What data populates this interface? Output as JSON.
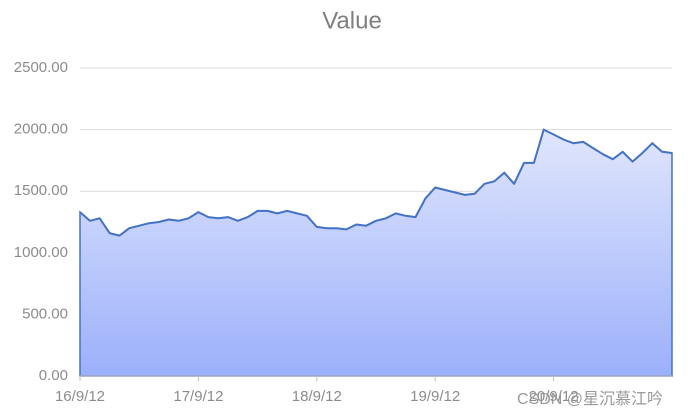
{
  "chart_data": {
    "type": "area",
    "title": "Value",
    "categories": [
      "16/9/12",
      null,
      null,
      null,
      null,
      null,
      null,
      null,
      null,
      null,
      null,
      null,
      "17/9/12",
      null,
      null,
      null,
      null,
      null,
      null,
      null,
      null,
      null,
      null,
      null,
      "18/9/12",
      null,
      null,
      null,
      null,
      null,
      null,
      null,
      null,
      null,
      null,
      null,
      "19/9/12",
      null,
      null,
      null,
      null,
      null,
      null,
      null,
      null,
      null,
      null,
      null,
      "20/9/12",
      null,
      null,
      null,
      null,
      null,
      null,
      null,
      null,
      null,
      null,
      null,
      null
    ],
    "series": [
      {
        "name": "Value",
        "color": "#4472c4",
        "values": [
          1330,
          1260,
          1280,
          1160,
          1140,
          1200,
          1220,
          1240,
          1250,
          1270,
          1260,
          1280,
          1330,
          1290,
          1280,
          1290,
          1260,
          1290,
          1340,
          1340,
          1320,
          1340,
          1320,
          1300,
          1210,
          1200,
          1200,
          1190,
          1230,
          1220,
          1260,
          1280,
          1320,
          1300,
          1290,
          1440,
          1530,
          1510,
          1490,
          1470,
          1480,
          1560,
          1580,
          1650,
          1560,
          1730,
          1730,
          2000,
          1960,
          1920,
          1890,
          1900,
          1850,
          1800,
          1760,
          1820,
          1740,
          1810,
          1890,
          1820,
          1810
        ]
      }
    ],
    "ylim": [
      0,
      2500
    ],
    "yticks": [
      {
        "value": 0,
        "label": "0.00"
      },
      {
        "value": 500,
        "label": "500.00"
      },
      {
        "value": 1000,
        "label": "1000.00"
      },
      {
        "value": 1500,
        "label": "1500.00"
      },
      {
        "value": 2000,
        "label": "2000.00"
      },
      {
        "value": 2500,
        "label": "2500.00"
      }
    ],
    "grid": true,
    "watermark": "CSDN @星沉慕江吟"
  }
}
